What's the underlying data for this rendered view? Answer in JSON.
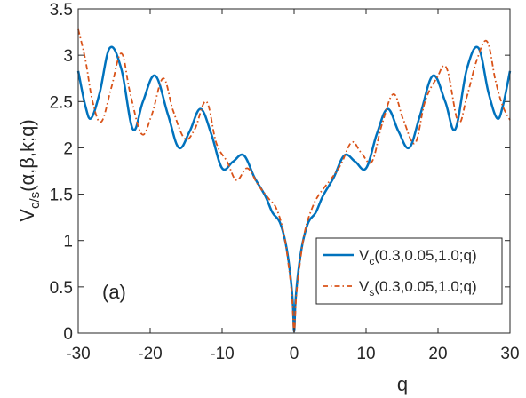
{
  "chart_data": {
    "type": "line",
    "xlabel": "q",
    "ylabel": {
      "main": "V",
      "sub": "c/s",
      "args": "(α,β,k;q)"
    },
    "xlim": [
      -30,
      30
    ],
    "ylim": [
      0,
      3.5
    ],
    "xticks": [
      -30,
      -20,
      -10,
      0,
      10,
      20,
      30
    ],
    "xtick_labels": [
      "-30",
      "-20",
      "-10",
      "0",
      "10",
      "20",
      "30"
    ],
    "yticks": [
      0,
      0.5,
      1,
      1.5,
      2,
      2.5,
      3,
      3.5
    ],
    "ytick_labels": [
      "0",
      "0.5",
      "1",
      "1.5",
      "2",
      "2.5",
      "3",
      "3.5"
    ],
    "grid": false,
    "legend_position": "bottom-right",
    "annotation": "(a)",
    "series": [
      {
        "name_main": "V",
        "name_sub": "c",
        "name_args": "(0.3,0.05,1.0;q)",
        "style": "solid",
        "color": "#0072BD",
        "x": [
          -30,
          -29,
          -28.2,
          -27,
          -25.6,
          -24,
          -22.4,
          -21,
          -19.3,
          -17.5,
          -16,
          -14.5,
          -13,
          -11.5,
          -10,
          -8.5,
          -7,
          -5.5,
          -4,
          -3,
          -2,
          -1.2,
          -0.6,
          -0.2,
          0,
          0.2,
          0.6,
          1.2,
          2,
          3,
          4,
          5.5,
          7,
          8.5,
          10,
          11.5,
          13,
          14.5,
          16,
          17.5,
          19.3,
          21,
          22.4,
          24,
          25.6,
          27,
          28.2,
          29,
          30
        ],
        "y": [
          2.83,
          2.45,
          2.32,
          2.6,
          3.08,
          2.85,
          2.2,
          2.5,
          2.78,
          2.35,
          2.0,
          2.18,
          2.42,
          2.15,
          1.78,
          1.85,
          1.92,
          1.68,
          1.48,
          1.3,
          1.2,
          0.98,
          0.68,
          0.35,
          0.02,
          0.35,
          0.68,
          0.98,
          1.2,
          1.3,
          1.48,
          1.68,
          1.92,
          1.85,
          1.78,
          2.15,
          2.42,
          2.18,
          2.0,
          2.35,
          2.78,
          2.5,
          2.2,
          2.85,
          3.08,
          2.6,
          2.32,
          2.45,
          2.83
        ]
      },
      {
        "name_main": "V",
        "name_sub": "s",
        "name_args": "(0.3,0.05,1.0;q)",
        "style": "dashdot",
        "color": "#D95319",
        "x": [
          -30,
          -29,
          -28,
          -26.8,
          -25.4,
          -24,
          -22.8,
          -21.2,
          -19.8,
          -18.2,
          -16.8,
          -15.2,
          -13.8,
          -12.2,
          -10.8,
          -9.3,
          -8,
          -6.5,
          -5,
          -3.5,
          -2.5,
          -1.5,
          -0.8,
          -0.3,
          0,
          0.3,
          0.8,
          1.5,
          2.5,
          3.5,
          5,
          6.5,
          8,
          9.3,
          10.8,
          12.2,
          13.8,
          15.2,
          16.8,
          18.2,
          19.8,
          21.2,
          22.8,
          24,
          25.4,
          26.8,
          28,
          29,
          30
        ],
        "y": [
          3.28,
          2.95,
          2.5,
          2.28,
          2.65,
          3.02,
          2.6,
          2.15,
          2.35,
          2.75,
          2.4,
          2.1,
          2.2,
          2.5,
          2.05,
          1.85,
          1.65,
          1.78,
          1.6,
          1.45,
          1.35,
          1.1,
          0.75,
          0.4,
          0.02,
          0.4,
          0.75,
          1.1,
          1.35,
          1.5,
          1.65,
          1.82,
          2.06,
          1.95,
          1.85,
          2.25,
          2.58,
          2.3,
          2.05,
          2.5,
          2.75,
          2.86,
          2.28,
          2.55,
          2.95,
          3.15,
          2.72,
          2.45,
          2.3
        ]
      }
    ]
  }
}
